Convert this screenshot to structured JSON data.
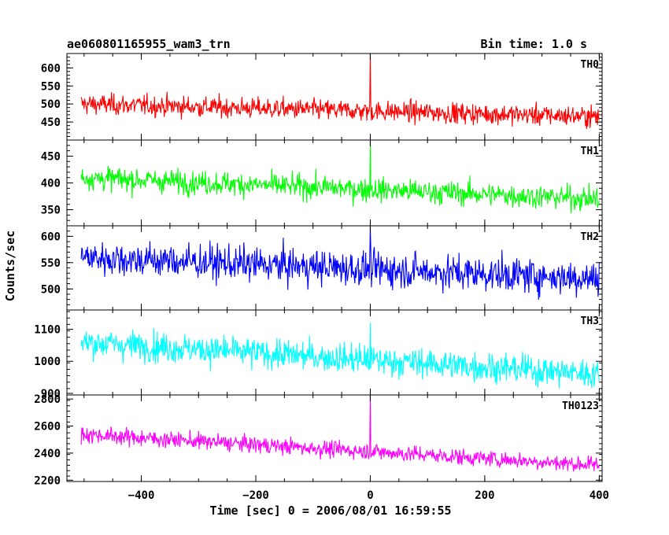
{
  "header": {
    "title": "ae060801165955_wam3_trn",
    "bin_time": "Bin time: 1.0 s"
  },
  "axes": {
    "xlabel": "Time [sec] 0 = 2006/08/01 16:59:55",
    "ylabel": "Counts/sec"
  },
  "chart_data": {
    "type": "line",
    "title": "ae060801165955_wam3_trn",
    "subtitle": "Bin time: 1.0 s",
    "xlabel": "Time [sec] 0 = 2006/08/01 16:59:55",
    "ylabel": "Counts/sec",
    "xlim": [
      -530,
      405
    ],
    "x_ticks": [
      -400,
      -200,
      0,
      200,
      400
    ],
    "x_step": 1,
    "grid": false,
    "panels": [
      {
        "name": "TH0",
        "color": "#ff0000",
        "ylim": [
          400,
          640
        ],
        "y_ticks": [
          450,
          500,
          550,
          600
        ],
        "x_range": [
          -505,
          400
        ],
        "level_start": 500,
        "level_end": 465,
        "noise": 26,
        "spike": {
          "x": 0,
          "value": 640
        }
      },
      {
        "name": "TH1",
        "color": "#00ff00",
        "ylim": [
          320,
          480
        ],
        "y_ticks": [
          350,
          400,
          450
        ],
        "x_range": [
          -505,
          400
        ],
        "level_start": 410,
        "level_end": 370,
        "noise": 20,
        "spike": {
          "x": 0,
          "value": 478
        }
      },
      {
        "name": "TH2",
        "color": "#0000ff",
        "ylim": [
          460,
          620
        ],
        "y_ticks": [
          500,
          550,
          600
        ],
        "x_range": [
          -505,
          400
        ],
        "level_start": 560,
        "level_end": 520,
        "noise": 30,
        "spike": {
          "x": 0,
          "value": 618
        }
      },
      {
        "name": "TH3",
        "color": "#00ffff",
        "ylim": [
          895,
          1160
        ],
        "y_ticks": [
          900,
          1000,
          1100
        ],
        "x_range": [
          -505,
          400
        ],
        "level_start": 1060,
        "level_end": 960,
        "noise": 42,
        "spike": {
          "x": 0,
          "value": 1120
        }
      },
      {
        "name": "TH0123",
        "color": "#ff00ff",
        "ylim": [
          2190,
          2830
        ],
        "y_ticks": [
          2200,
          2400,
          2600,
          2800
        ],
        "x_range": [
          -505,
          400
        ],
        "level_start": 2540,
        "level_end": 2310,
        "noise": 55,
        "spike": {
          "x": 0,
          "value": 2830
        }
      }
    ]
  }
}
